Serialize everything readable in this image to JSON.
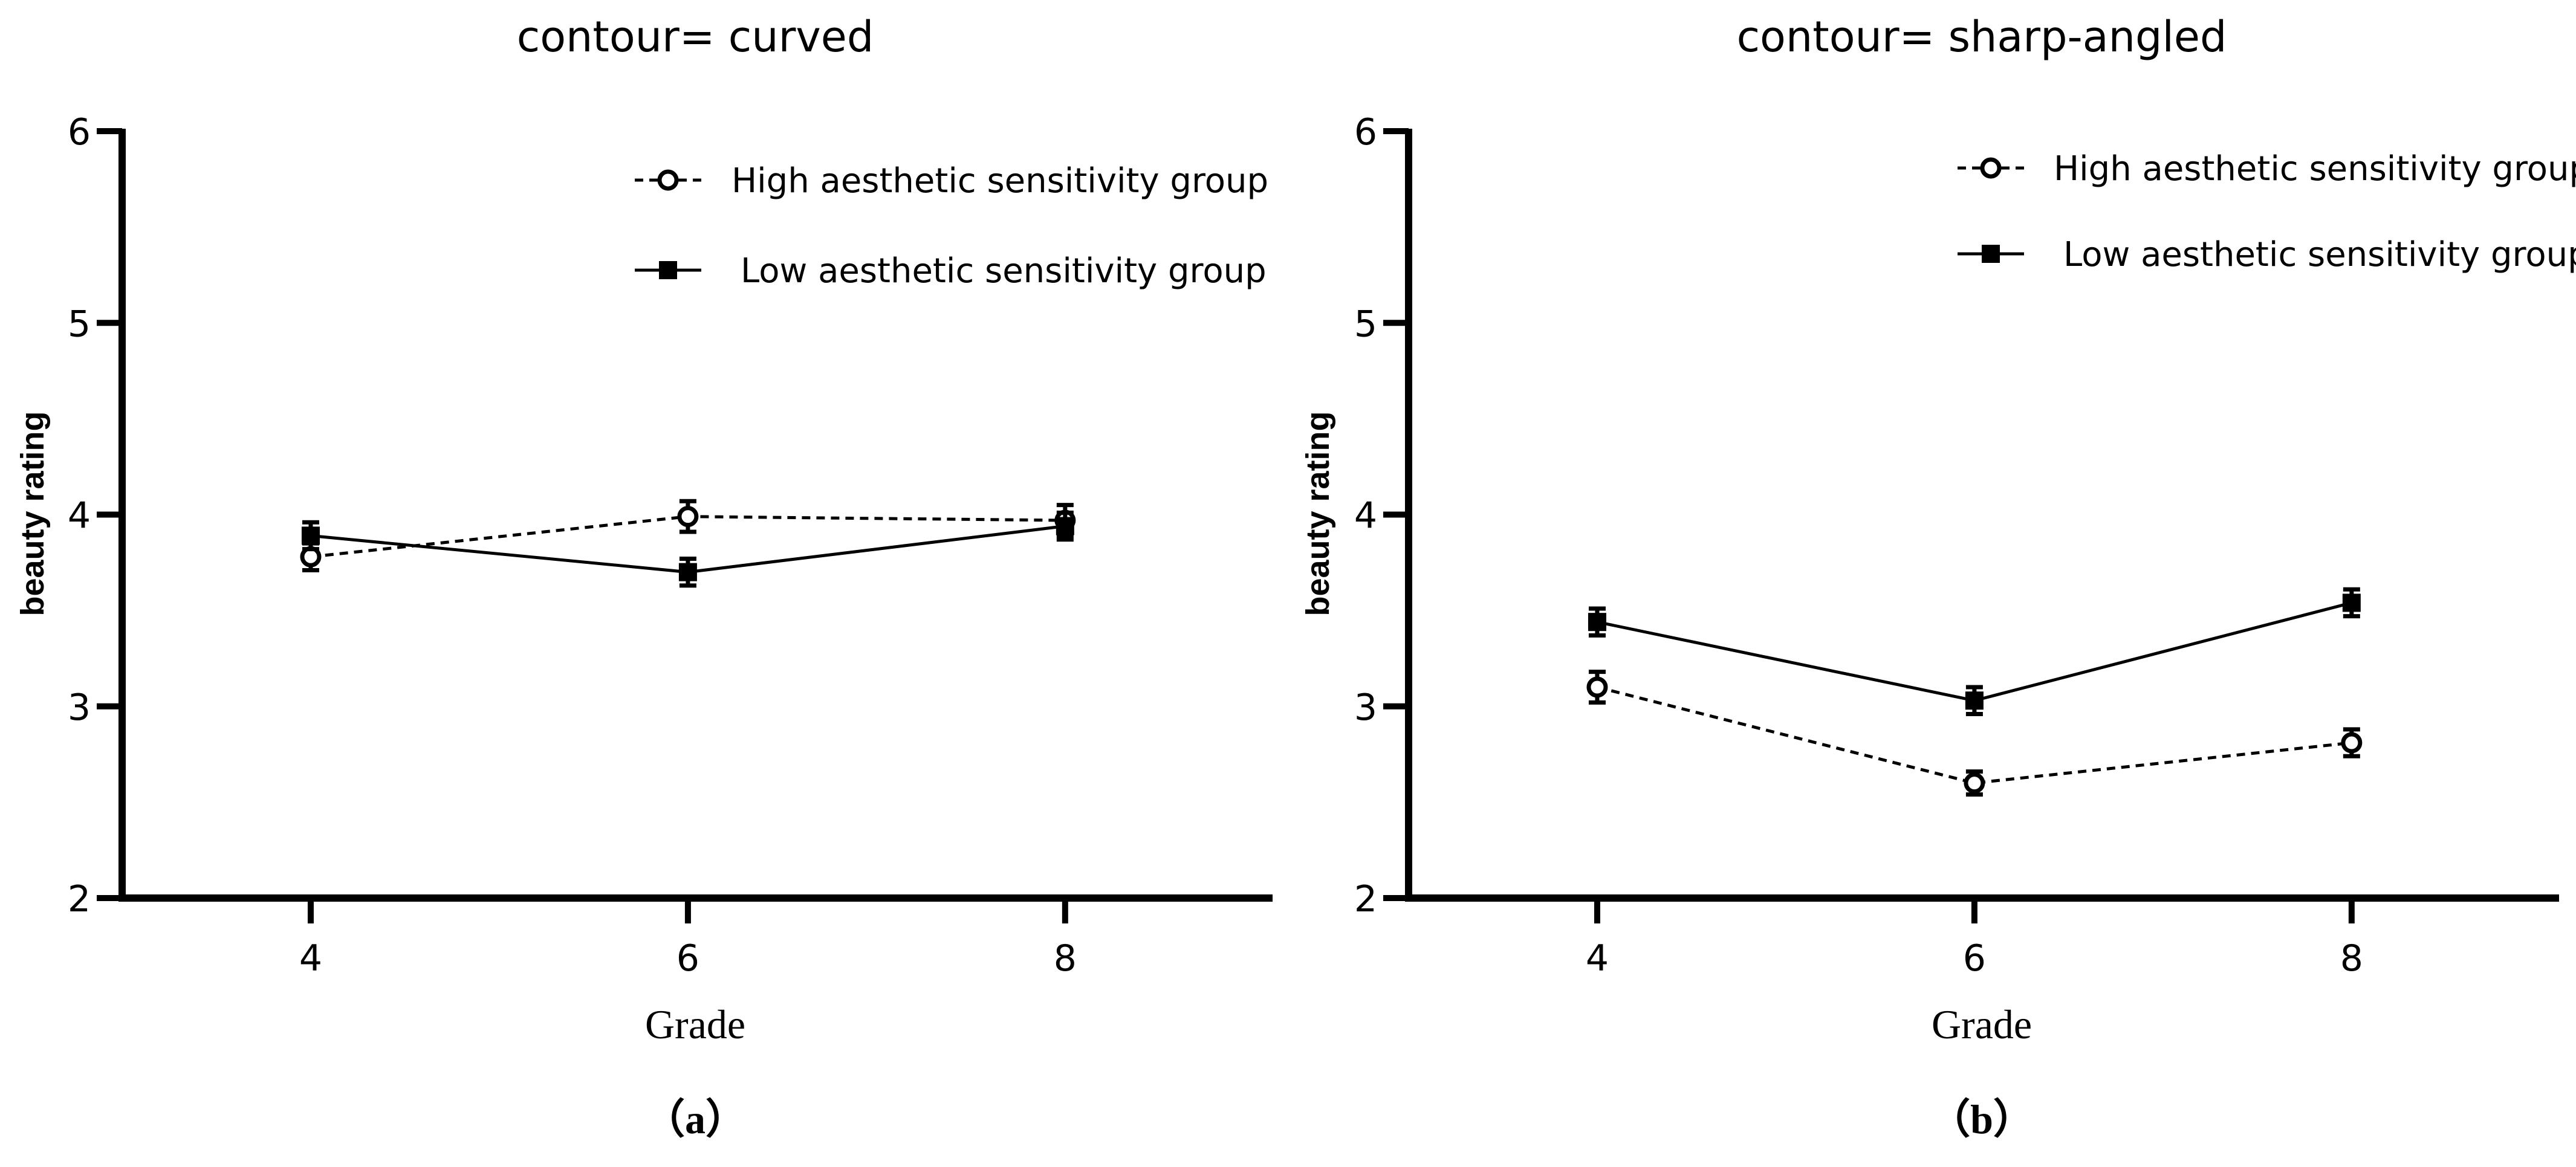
{
  "chart_data": [
    {
      "id": "a",
      "type": "line",
      "title": "contour= curved",
      "xlabel": "Grade",
      "ylabel": "beauty rating",
      "caption": "（a）",
      "x": [
        4,
        6,
        8
      ],
      "xticks": [
        "4",
        "6",
        "8"
      ],
      "xlim": [
        3,
        9.1
      ],
      "ylim": [
        2,
        6
      ],
      "yticks": [
        "2",
        "3",
        "4",
        "5",
        "6"
      ],
      "legend_position": "top-right",
      "series": [
        {
          "name": "High aesthetic sensitivity group",
          "marker": "open-circle",
          "line": "dashed",
          "values": [
            3.78,
            3.99,
            3.97
          ],
          "errors": [
            0.07,
            0.08,
            0.08
          ]
        },
        {
          "name": "Low aesthetic sensitivity group",
          "marker": "filled-square",
          "line": "solid",
          "values": [
            3.89,
            3.7,
            3.94
          ],
          "errors": [
            0.07,
            0.07,
            0.07
          ]
        }
      ]
    },
    {
      "id": "b",
      "type": "line",
      "title": "contour= sharp-angled",
      "xlabel": "Grade",
      "ylabel": "beauty rating",
      "caption": "（b）",
      "x": [
        4,
        6,
        8
      ],
      "xticks": [
        "4",
        "6",
        "8"
      ],
      "xlim": [
        3,
        9.1
      ],
      "ylim": [
        2,
        6
      ],
      "yticks": [
        "2",
        "3",
        "4",
        "5",
        "6"
      ],
      "legend_position": "top-right",
      "series": [
        {
          "name": "High aesthetic sensitivity group",
          "marker": "open-circle",
          "line": "dashed",
          "values": [
            3.1,
            2.6,
            2.81
          ],
          "errors": [
            0.08,
            0.06,
            0.07
          ]
        },
        {
          "name": "Low aesthetic sensitivity group",
          "marker": "filled-square",
          "line": "solid",
          "values": [
            3.44,
            3.03,
            3.54
          ],
          "errors": [
            0.07,
            0.07,
            0.07
          ]
        }
      ]
    }
  ]
}
